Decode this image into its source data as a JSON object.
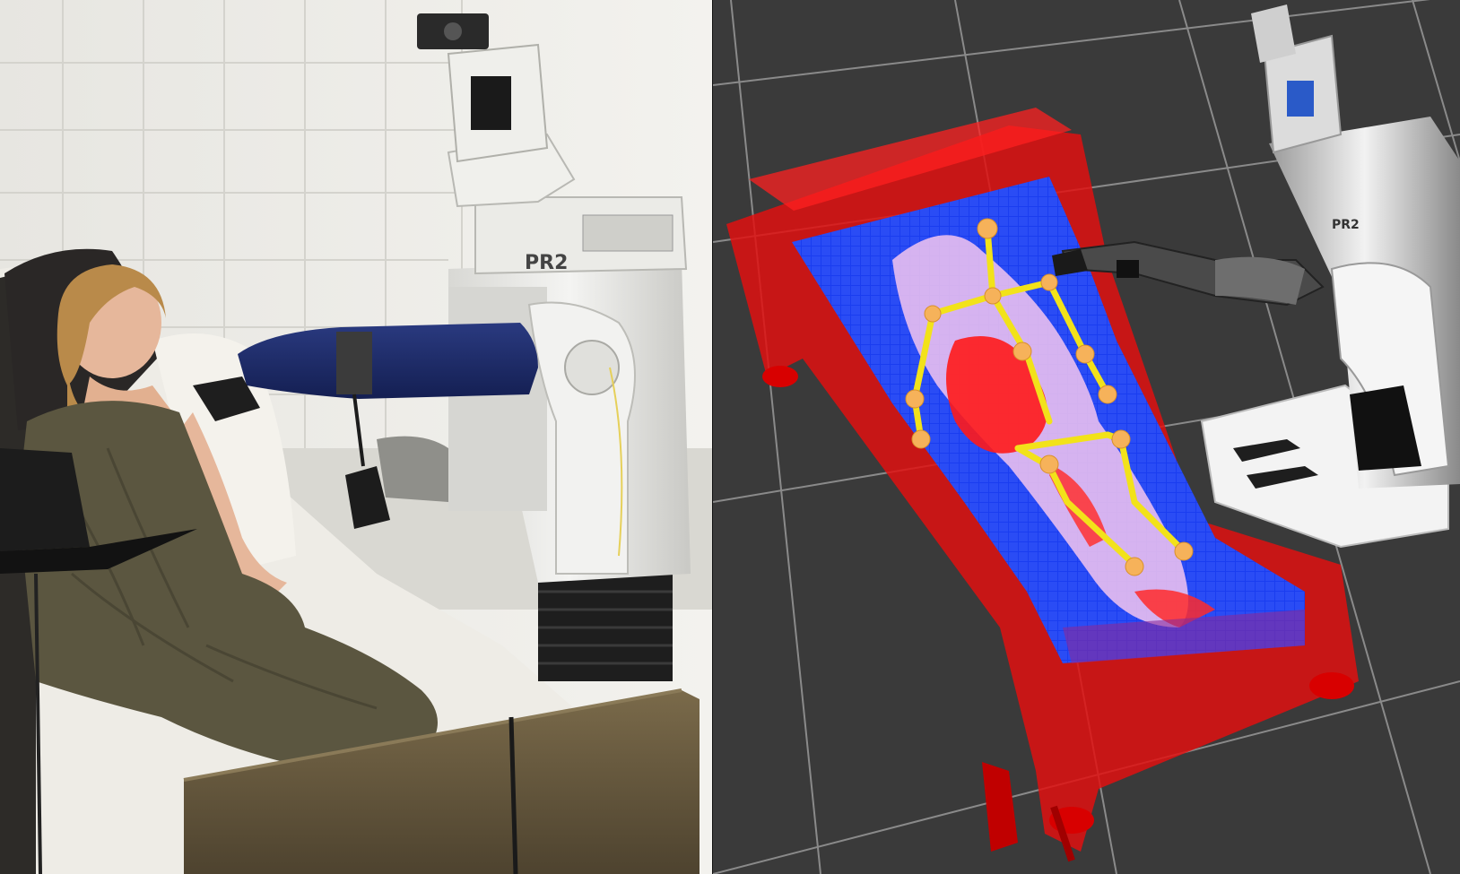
{
  "scene": {
    "left_panel": {
      "robot_badge_text": "PR2"
    },
    "right_panel": {
      "robot_badge_text": "PR2"
    }
  },
  "colors": {
    "visualization_background": "#3a3a3a",
    "grid_lines": "#8a8a8a",
    "bed_frame": "#e01010",
    "pressure_mat_base": "#1a3df0",
    "pressure_high": "#ff1a1a",
    "pressure_mid": "#f4c6ee",
    "skeleton": "#f2e21a",
    "skeleton_joint": "#f6b25a",
    "robot_body": "#e8e8e8",
    "robot_dark": "#2a2a2a",
    "blanket": "#5b5640",
    "wall": "#ecebe6",
    "bed_rail": "#6a5a3e",
    "sleeve": "#1b2a6a"
  }
}
